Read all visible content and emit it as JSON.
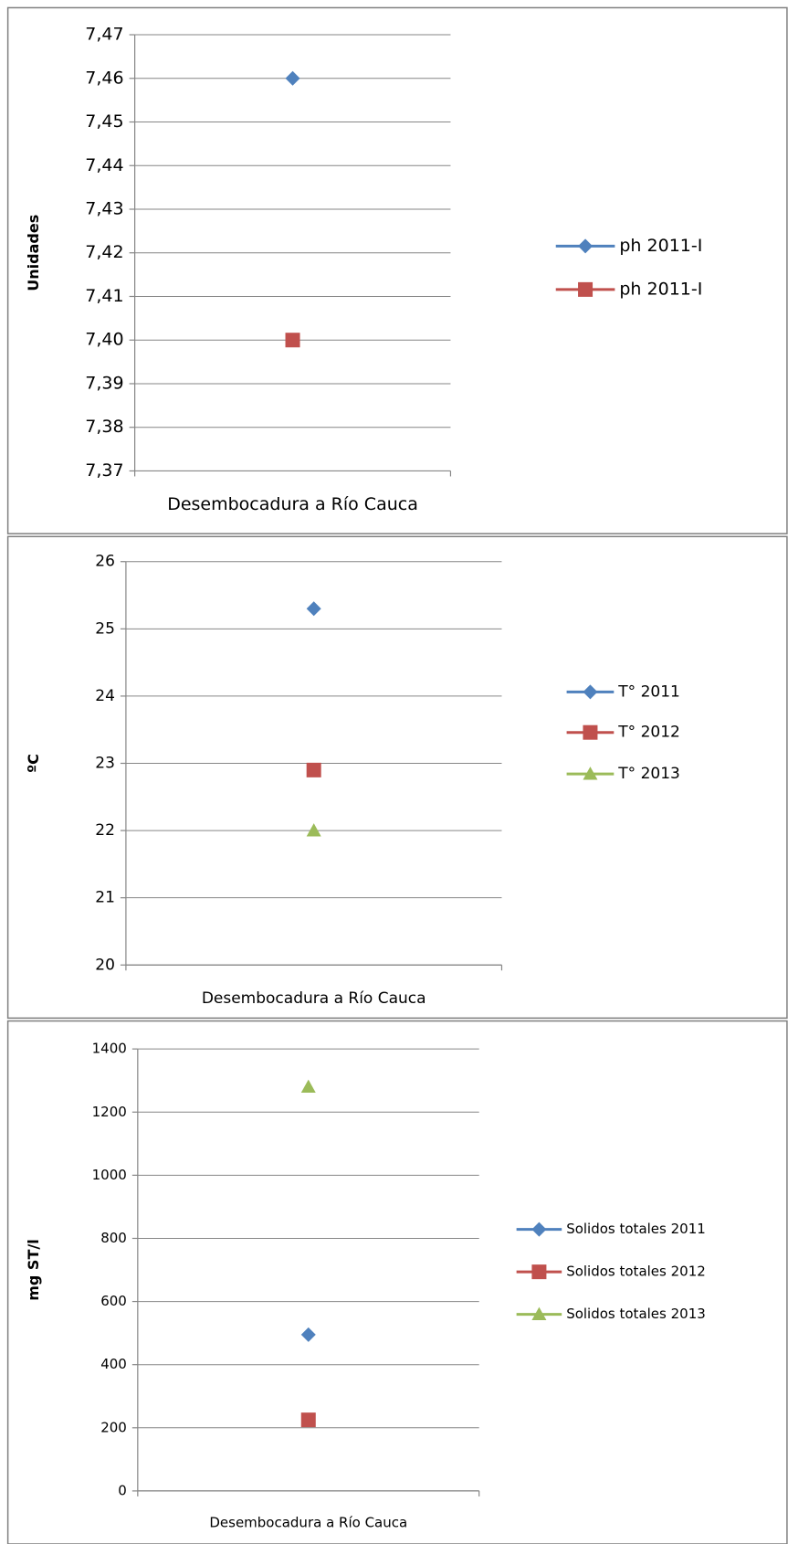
{
  "chart_data": [
    {
      "type": "line",
      "y_label": "Unidades",
      "categories": [
        "Desembocadura a Río Cauca"
      ],
      "ylim": [
        7.37,
        7.47
      ],
      "yticks": [
        {
          "value": 7.37,
          "label": "7,37"
        },
        {
          "value": 7.38,
          "label": "7,38"
        },
        {
          "value": 7.39,
          "label": "7,39"
        },
        {
          "value": 7.4,
          "label": "7,40"
        },
        {
          "value": 7.41,
          "label": "7,41"
        },
        {
          "value": 7.42,
          "label": "7,42"
        },
        {
          "value": 7.43,
          "label": "7,43"
        },
        {
          "value": 7.44,
          "label": "7,44"
        },
        {
          "value": 7.45,
          "label": "7,45"
        },
        {
          "value": 7.46,
          "label": "7,46"
        },
        {
          "value": 7.47,
          "label": "7,47"
        }
      ],
      "grid": true,
      "legend": "right",
      "series": [
        {
          "name": "ph 2011-I",
          "color": "#4f81bd",
          "values": [
            7.46
          ]
        },
        {
          "name": "ph 2011-I",
          "color": "#c0504d",
          "values": [
            7.4
          ]
        }
      ]
    },
    {
      "type": "line",
      "y_label": "ºC",
      "categories": [
        "Desembocadura a Río Cauca"
      ],
      "ylim": [
        20,
        26
      ],
      "yticks": [
        20,
        21,
        22,
        23,
        24,
        25,
        26
      ],
      "grid": true,
      "legend": "right",
      "series": [
        {
          "name": "T° 2011",
          "color": "#4f81bd",
          "values": [
            25.3
          ]
        },
        {
          "name": "T° 2012",
          "color": "#c0504d",
          "values": [
            22.9
          ]
        },
        {
          "name": "T° 2013",
          "color": "#9bbb59",
          "values": [
            22
          ]
        }
      ]
    },
    {
      "type": "line",
      "y_label": "mg ST/l",
      "categories": [
        "Desembocadura a Río Cauca"
      ],
      "ylim": [
        0,
        1400
      ],
      "yticks": [
        0,
        200,
        400,
        600,
        800,
        1000,
        1200,
        1400
      ],
      "grid": true,
      "legend": "right",
      "series": [
        {
          "name": "Solidos totales 2011",
          "color": "#4f81bd",
          "values": [
            495
          ]
        },
        {
          "name": "Solidos totales 2012",
          "color": "#c0504d",
          "values": [
            225
          ]
        },
        {
          "name": "Solidos totales 2013",
          "color": "#9bbb59",
          "values": [
            1280
          ]
        }
      ]
    }
  ]
}
